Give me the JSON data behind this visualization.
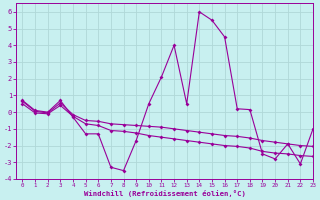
{
  "title": "",
  "xlabel": "Windchill (Refroidissement éolien,°C)",
  "ylabel": "",
  "bg_color": "#c8f0f0",
  "line_color": "#990099",
  "grid_color": "#b0d8d8",
  "xlim": [
    -0.5,
    23
  ],
  "ylim": [
    -4,
    6.5
  ],
  "x_ticks": [
    0,
    1,
    2,
    3,
    4,
    5,
    6,
    7,
    8,
    9,
    10,
    11,
    12,
    13,
    14,
    15,
    16,
    17,
    18,
    19,
    20,
    21,
    22,
    23
  ],
  "y_ticks": [
    -4,
    -3,
    -2,
    -1,
    0,
    1,
    2,
    3,
    4,
    5,
    6
  ],
  "series1_x": [
    0,
    1,
    2,
    3,
    4,
    5,
    6,
    7,
    8,
    9,
    10,
    11,
    12,
    13,
    14,
    15,
    16,
    17,
    18,
    19,
    20,
    21,
    22,
    23
  ],
  "series1_y": [
    0.7,
    0.1,
    0.0,
    0.7,
    -0.3,
    -1.3,
    -1.3,
    -3.3,
    -3.5,
    -1.7,
    0.5,
    2.1,
    4.0,
    0.5,
    6.0,
    5.5,
    4.5,
    0.2,
    0.15,
    -2.5,
    -2.8,
    -1.9,
    -3.1,
    -1.0
  ],
  "series2_x": [
    0,
    1,
    2,
    3,
    4,
    5,
    6,
    7,
    8,
    9,
    10,
    11,
    12,
    13,
    14,
    15,
    16,
    17,
    18,
    19,
    20,
    21,
    22,
    23
  ],
  "series2_y": [
    0.65,
    0.05,
    -0.05,
    0.55,
    -0.15,
    -0.5,
    -0.55,
    -0.7,
    -0.75,
    -0.8,
    -0.85,
    -0.9,
    -1.0,
    -1.1,
    -1.2,
    -1.3,
    -1.4,
    -1.45,
    -1.55,
    -1.7,
    -1.8,
    -1.9,
    -2.0,
    -2.05
  ],
  "series3_x": [
    0,
    1,
    2,
    3,
    4,
    5,
    6,
    7,
    8,
    9,
    10,
    11,
    12,
    13,
    14,
    15,
    16,
    17,
    18,
    19,
    20,
    21,
    22,
    23
  ],
  "series3_y": [
    0.5,
    -0.05,
    -0.1,
    0.4,
    -0.25,
    -0.7,
    -0.8,
    -1.1,
    -1.15,
    -1.25,
    -1.4,
    -1.5,
    -1.6,
    -1.7,
    -1.8,
    -1.9,
    -2.0,
    -2.05,
    -2.15,
    -2.35,
    -2.45,
    -2.5,
    -2.6,
    -2.65
  ]
}
